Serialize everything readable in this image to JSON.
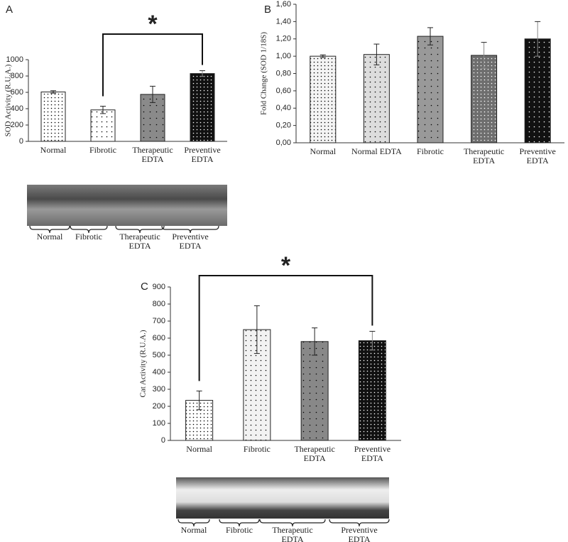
{
  "chart_data": [
    {
      "type": "bar",
      "panel": "A",
      "ylabel": "SOD Activity (R.U.A.)",
      "categories": [
        "Normal",
        "Fibrotic",
        "Therapeutic EDTA",
        "Preventive EDTA"
      ],
      "values": [
        605,
        385,
        575,
        830
      ],
      "errors": [
        15,
        45,
        100,
        35
      ],
      "colors": [
        "#ffffff",
        "#ffffff",
        "#8a8a8a",
        "#111111"
      ],
      "ylim": [
        0,
        1000
      ],
      "yticks": [
        0,
        200,
        400,
        600,
        800,
        1000
      ],
      "annotation": "*",
      "blot_labels": [
        "Normal",
        "Fibrotic",
        "Therapeutic EDTA",
        "Preventive EDTA"
      ]
    },
    {
      "type": "bar",
      "panel": "B",
      "ylabel": "Fold Change (SOD 1/18S)",
      "categories": [
        "Normal",
        "Normal EDTA",
        "Fibrotic",
        "Therapeutic EDTA",
        "Preventive EDTA"
      ],
      "values": [
        1.0,
        1.02,
        1.23,
        1.01,
        1.2
      ],
      "errors": [
        0.015,
        0.12,
        0.1,
        0.15,
        0.2
      ],
      "colors": [
        "#f4f4f4",
        "#dddddd",
        "#999999",
        "#6e6e6e",
        "#111111"
      ],
      "ylim": [
        0,
        1.6
      ],
      "yticks": [
        {
          "value": 0,
          "label": "0,00"
        },
        {
          "value": 0.2,
          "label": "0,20"
        },
        {
          "value": 0.4,
          "label": "0,40"
        },
        {
          "value": 0.6,
          "label": "0,60"
        },
        {
          "value": 0.8,
          "label": "0,80"
        },
        {
          "value": 1.0,
          "label": "1,00"
        },
        {
          "value": 1.2,
          "label": "1,20"
        },
        {
          "value": 1.4,
          "label": "1,40"
        },
        {
          "value": 1.6,
          "label": "1,60"
        }
      ]
    },
    {
      "type": "bar",
      "panel": "C",
      "ylabel": "Cat Activity (R.U.A.)",
      "categories": [
        "Normal",
        "Fibrotic",
        "Therapeutic EDTA",
        "Preventive EDTA"
      ],
      "values": [
        235,
        650,
        580,
        585
      ],
      "errors": [
        55,
        140,
        80,
        55
      ],
      "colors": [
        "#ffffff",
        "#f2f2f2",
        "#888888",
        "#111111"
      ],
      "ylim": [
        0,
        900
      ],
      "yticks": [
        0,
        100,
        200,
        300,
        400,
        500,
        600,
        700,
        800,
        900
      ],
      "annotation": "*",
      "blot_labels": [
        "Normal",
        "Fibrotic",
        "Therapeutic EDTA",
        "Preventive EDTA"
      ]
    }
  ]
}
